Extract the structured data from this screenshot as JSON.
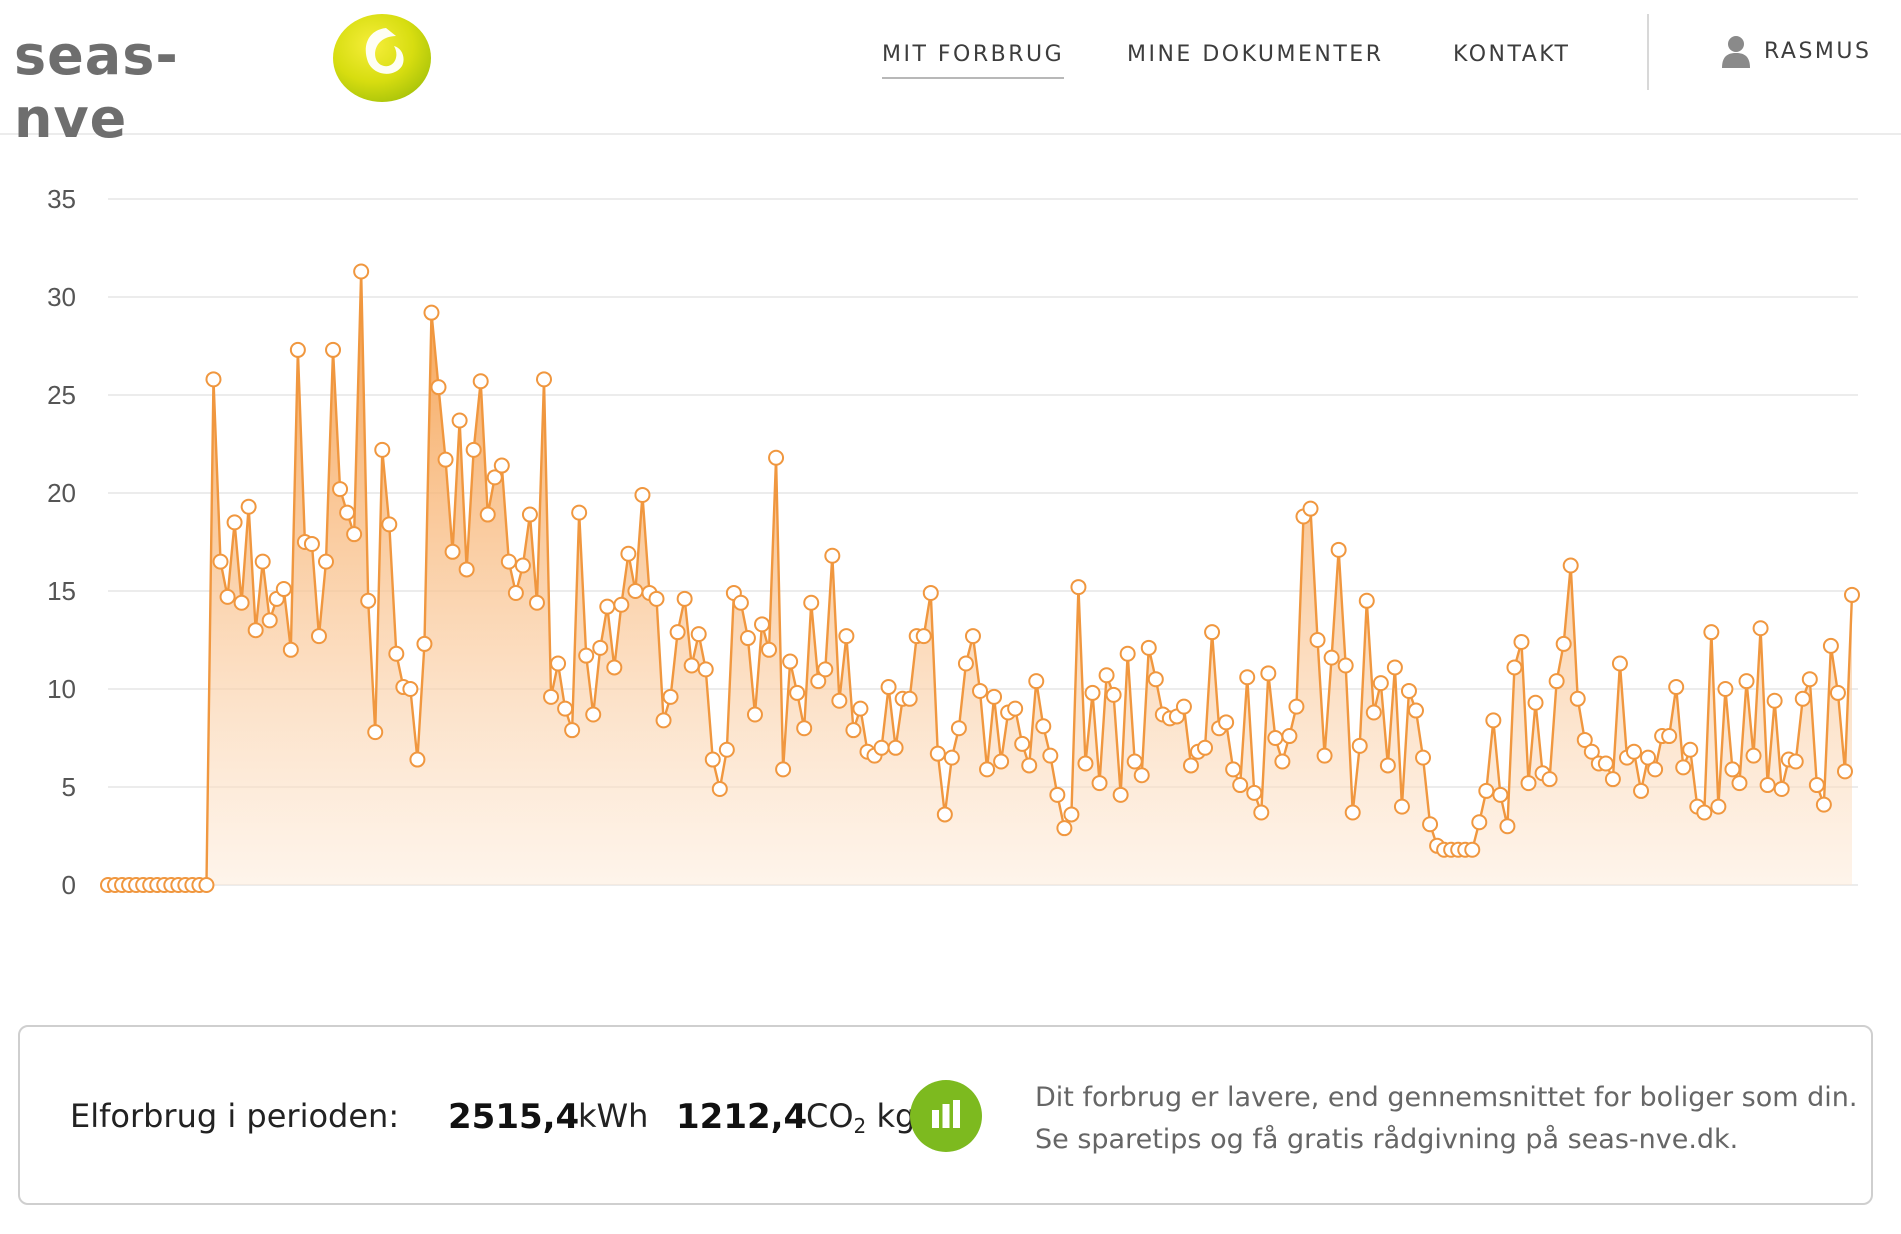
{
  "header": {
    "logo_text": "seas-nve",
    "nav": [
      {
        "label": "MIT FORBRUG",
        "active": true
      },
      {
        "label": "MINE DOKUMENTER",
        "active": false
      },
      {
        "label": "KONTAKT",
        "active": false
      }
    ],
    "user": {
      "name": "RASMUS",
      "icon": "user-icon"
    }
  },
  "colors": {
    "accent": "#f0973f",
    "logo_green": "#c8d400",
    "stats_button": "#7dba1f"
  },
  "chart_data": {
    "type": "area",
    "title": "",
    "xlabel": "",
    "ylabel": "",
    "ylim": [
      0,
      35
    ],
    "yticks": [
      0,
      5,
      10,
      15,
      20,
      25,
      30,
      35
    ],
    "grid": true,
    "series": [
      {
        "values": [
          0,
          0,
          0,
          0,
          0,
          0,
          0,
          0,
          0,
          0,
          0,
          0,
          0,
          0,
          0,
          25.8,
          16.5,
          14.7,
          18.5,
          14.4,
          19.3,
          13,
          16.5,
          13.5,
          14.6,
          15.1,
          12,
          27.3,
          17.5,
          17.4,
          12.7,
          16.5,
          27.3,
          20.2,
          19,
          17.9,
          31.3,
          14.5,
          7.8,
          22.2,
          18.4,
          11.8,
          10.1,
          10,
          6.4,
          12.3,
          29.2,
          25.4,
          21.7,
          17,
          23.7,
          16.1,
          22.2,
          25.7,
          18.9,
          20.8,
          21.4,
          16.5,
          14.9,
          16.3,
          18.9,
          14.4,
          25.8,
          9.6,
          11.3,
          9,
          7.9,
          19,
          11.7,
          8.7,
          12.1,
          14.2,
          11.1,
          14.3,
          16.9,
          15,
          19.9,
          14.9,
          14.6,
          8.4,
          9.6,
          12.9,
          14.6,
          11.2,
          12.8,
          11,
          6.4,
          4.9,
          6.9,
          14.9,
          14.4,
          12.6,
          8.7,
          13.3,
          12,
          21.8,
          5.9,
          11.4,
          9.8,
          8,
          14.4,
          10.4,
          11,
          16.8,
          9.4,
          12.7,
          7.9,
          9,
          6.8,
          6.6,
          7,
          10.1,
          7,
          9.5,
          9.5,
          12.7,
          12.7,
          14.9,
          6.7,
          3.6,
          6.5,
          8,
          11.3,
          12.7,
          9.9,
          5.9,
          9.6,
          6.3,
          8.8,
          9,
          7.2,
          6.1,
          10.4,
          8.1,
          6.6,
          4.6,
          2.9,
          3.6,
          15.2,
          6.2,
          9.8,
          5.2,
          10.7,
          9.7,
          4.6,
          11.8,
          6.3,
          5.6,
          12.1,
          10.5,
          8.7,
          8.5,
          8.6,
          9.1,
          6.1,
          6.8,
          7,
          12.9,
          8,
          8.3,
          5.9,
          5.1,
          10.6,
          4.7,
          3.7,
          10.8,
          7.5,
          6.3,
          7.6,
          9.1,
          18.8,
          19.2,
          12.5,
          6.6,
          11.6,
          17.1,
          11.2,
          3.7,
          7.1,
          14.5,
          8.8,
          10.3,
          6.1,
          11.1,
          4,
          9.9,
          8.9,
          6.5,
          3.1,
          2,
          1.8,
          1.8,
          1.8,
          1.8,
          1.8,
          3.2,
          4.8,
          8.4,
          4.6,
          3,
          11.1,
          12.4,
          5.2,
          9.3,
          5.7,
          5.4,
          10.4,
          12.3,
          16.3,
          9.5,
          7.4,
          6.8,
          6.2,
          6.2,
          5.4,
          11.3,
          6.5,
          6.8,
          4.8,
          6.5,
          5.9,
          7.6,
          7.6,
          10.1,
          6,
          6.9,
          4,
          3.7,
          12.9,
          4,
          10,
          5.9,
          5.2,
          10.4,
          6.6,
          13.1,
          5.1,
          9.4,
          4.9,
          6.4,
          6.3,
          9.5,
          10.5,
          5.1,
          4.1,
          12.2,
          9.8,
          5.8,
          14.8
        ]
      }
    ]
  },
  "summary": {
    "label": "Elforbrug i perioden:",
    "kwh_value": "2515,4",
    "kwh_unit": "kWh",
    "co2_value": "1212,4",
    "co2_unit_main": "CO",
    "co2_unit_sub": "2",
    "co2_unit_suffix": " kg",
    "stats_icon": "bar-chart-icon",
    "message_line1": "Dit forbrug er lavere, end gennemsnittet for boliger som din.",
    "message_line2": "Se sparetips og få gratis rådgivning på seas-nve.dk."
  }
}
